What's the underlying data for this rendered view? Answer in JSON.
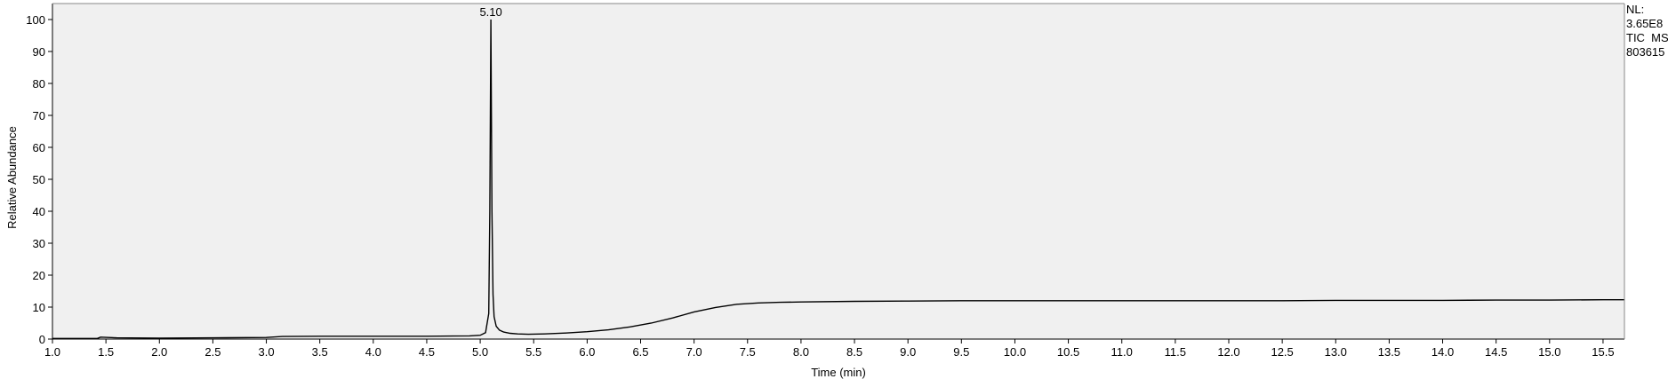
{
  "chart_data": {
    "type": "line",
    "xlabel": "Time (min)",
    "ylabel": "Relative Abundance",
    "xlim": [
      1.0,
      15.7
    ],
    "ylim": [
      0,
      100
    ],
    "x_ticks": [
      "1.0",
      "1.5",
      "2.0",
      "2.5",
      "3.0",
      "3.5",
      "4.0",
      "4.5",
      "5.0",
      "5.5",
      "6.0",
      "6.5",
      "7.0",
      "7.5",
      "8.0",
      "8.5",
      "9.0",
      "9.5",
      "10.0",
      "10.5",
      "11.0",
      "11.5",
      "12.0",
      "12.5",
      "13.0",
      "13.5",
      "14.0",
      "14.5",
      "15.0",
      "15.5"
    ],
    "y_ticks": [
      "0",
      "10",
      "20",
      "30",
      "40",
      "50",
      "60",
      "70",
      "80",
      "90",
      "100"
    ],
    "peak_annotation": {
      "label": "5.10",
      "x": 5.1,
      "y": 100
    },
    "info_text": [
      "NL:",
      "3.65E8",
      "TIC  MS",
      "803615"
    ],
    "grid": false,
    "series": [
      {
        "x": [
          1.0,
          1.3,
          1.42,
          1.45,
          1.6,
          2.0,
          2.5,
          3.0,
          3.15,
          3.5,
          4.0,
          4.5,
          4.9,
          5.0,
          5.05,
          5.08,
          5.09,
          5.1,
          5.11,
          5.12,
          5.13,
          5.15,
          5.18,
          5.22,
          5.28,
          5.35,
          5.45,
          5.6,
          5.8,
          6.0,
          6.2,
          6.4,
          6.6,
          6.8,
          7.0,
          7.2,
          7.4,
          7.6,
          7.8,
          8.0,
          8.5,
          9.0,
          9.5,
          10.0,
          10.5,
          11.0,
          11.5,
          12.0,
          12.5,
          13.0,
          13.5,
          14.0,
          14.5,
          15.0,
          15.5,
          15.7
        ],
        "y": [
          0.2,
          0.2,
          0.2,
          0.6,
          0.4,
          0.3,
          0.4,
          0.5,
          0.8,
          0.9,
          0.9,
          0.9,
          1.0,
          1.2,
          2.0,
          8.0,
          40.0,
          100.0,
          40.0,
          14.0,
          7.0,
          4.0,
          2.8,
          2.2,
          1.8,
          1.6,
          1.5,
          1.6,
          1.9,
          2.3,
          2.9,
          3.8,
          5.0,
          6.6,
          8.5,
          9.9,
          10.9,
          11.3,
          11.5,
          11.6,
          11.8,
          11.9,
          12.0,
          12.0,
          12.0,
          12.0,
          12.0,
          12.0,
          12.0,
          12.1,
          12.1,
          12.1,
          12.2,
          12.2,
          12.3,
          12.3
        ]
      }
    ]
  }
}
